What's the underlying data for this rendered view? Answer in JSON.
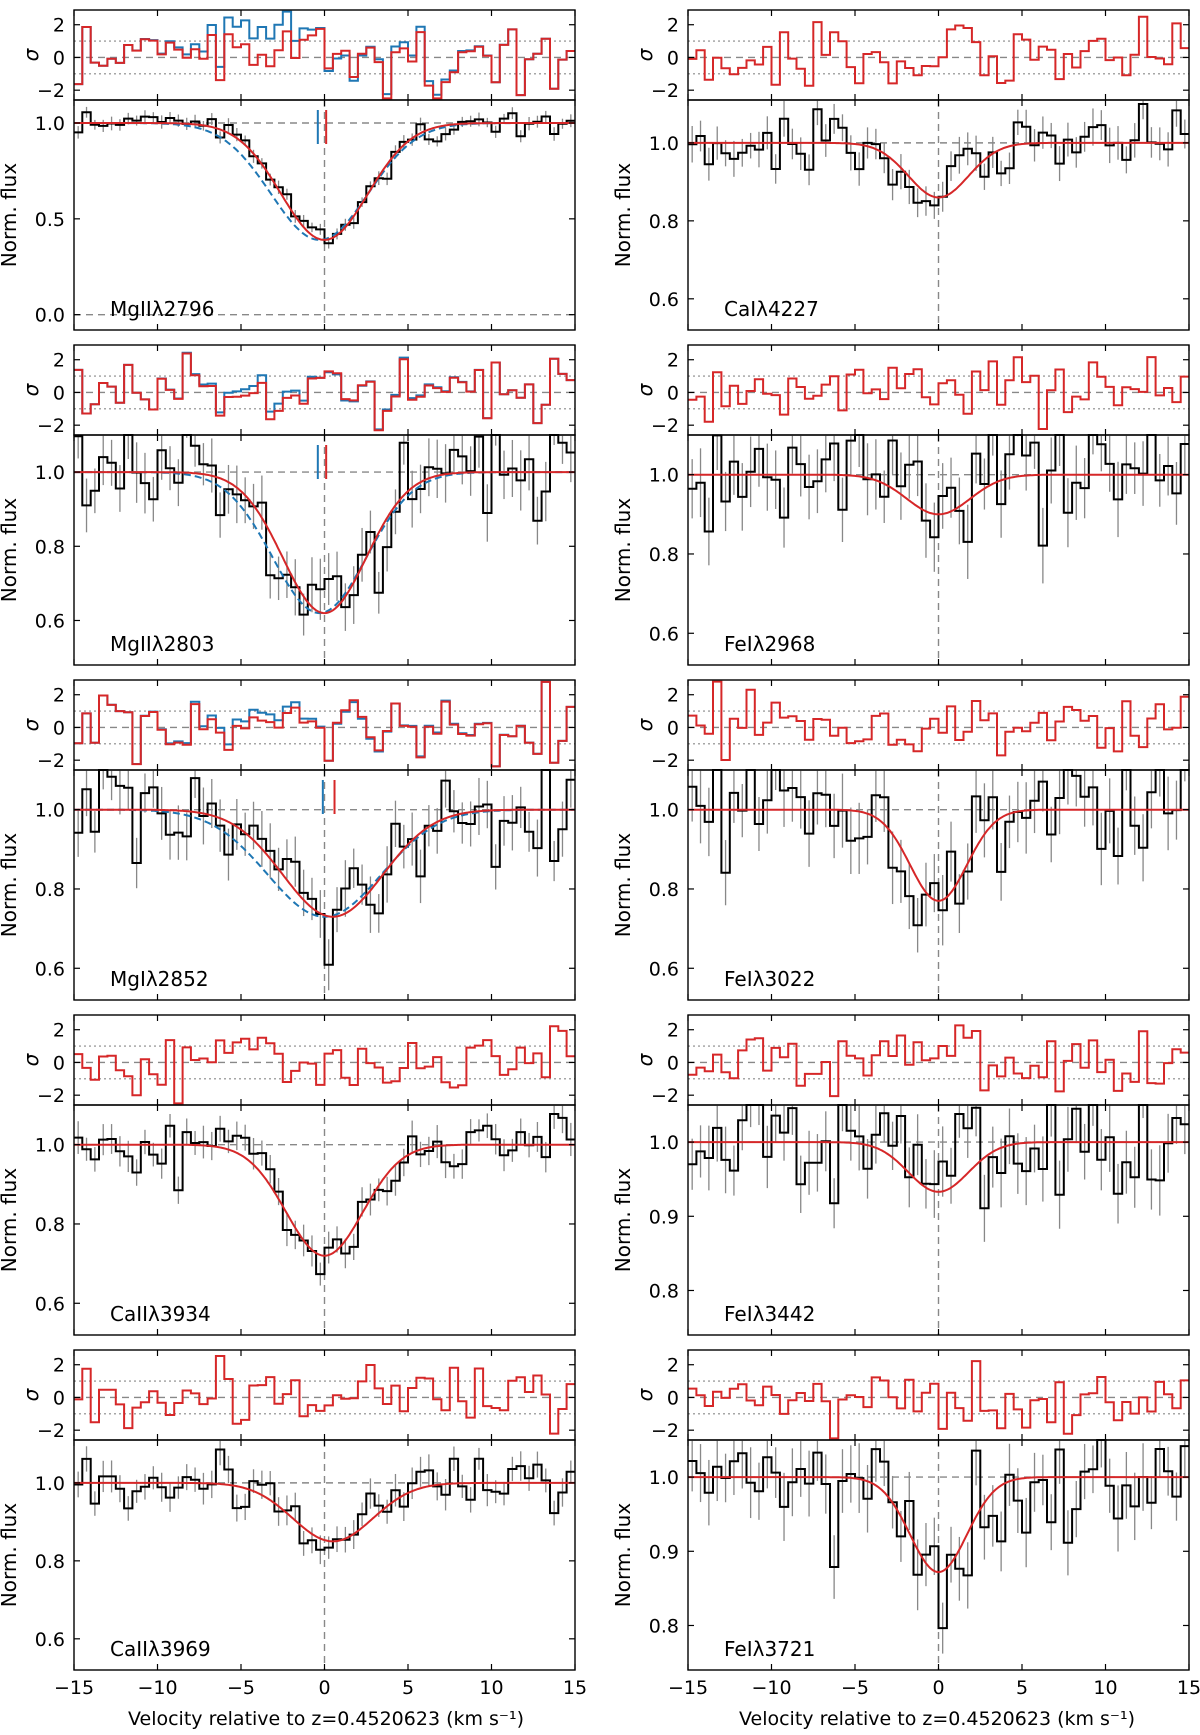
{
  "figure": {
    "xlabel": "Velocity relative to z=0.4520623 (km s⁻¹)",
    "resid_ylabel": "σ",
    "flux_ylabel": "Norm. flux",
    "xlim": [
      -15,
      15
    ],
    "xticks": [
      -15,
      -10,
      -5,
      0,
      5,
      10,
      15
    ],
    "xtick_labels": [
      "−15",
      "−10",
      "−5",
      "0",
      "5",
      "10",
      "15"
    ],
    "resid_ylim": [
      -2.6,
      2.9
    ],
    "resid_yticks": [
      -2,
      0,
      2
    ],
    "resid_ytick_labels": [
      "−2",
      "0",
      "2"
    ],
    "colors": {
      "data": "#000000",
      "error": "#888888",
      "model_red": "#d62728",
      "model_blue": "#1f77b4",
      "reference": "#888888"
    }
  },
  "chart_data": [
    {
      "type": "line",
      "label": "MgIIλ2796",
      "ylabel": "Norm. flux",
      "ylim": [
        -0.08,
        1.12
      ],
      "yticks": [
        0.0,
        0.5,
        1.0
      ],
      "ytick_labels": [
        "0.0",
        "0.5",
        "1.0"
      ],
      "show_zero_line": true,
      "model": {
        "center": 0.0,
        "sigma": 2.6,
        "depth": 0.61,
        "min_flux": 0.39
      },
      "blue_model": {
        "center": -0.3,
        "sigma": 2.9,
        "depth": 0.61
      },
      "component_ticks": [
        {
          "v": -0.4,
          "color": "blue"
        },
        {
          "v": 0.1,
          "color": "red"
        }
      ],
      "noise_level": 0.03,
      "resid_blue": true
    },
    {
      "type": "line",
      "label": "CaIλ4227",
      "ylabel": "Norm. flux",
      "ylim": [
        0.52,
        1.11
      ],
      "yticks": [
        0.6,
        0.8,
        1.0
      ],
      "ytick_labels": [
        "0.6",
        "0.8",
        "1.0"
      ],
      "model": {
        "center": 0.0,
        "sigma": 1.8,
        "depth": 0.14,
        "min_flux": 0.86
      },
      "noise_level": 0.04,
      "resid_blue": false
    },
    {
      "type": "line",
      "label": "MgIIλ2803",
      "ylabel": "Norm. flux",
      "ylim": [
        0.48,
        1.1
      ],
      "yticks": [
        0.6,
        0.8,
        1.0
      ],
      "ytick_labels": [
        "0.6",
        "0.8",
        "1.0"
      ],
      "model": {
        "center": 0.0,
        "sigma": 2.5,
        "depth": 0.38,
        "min_flux": 0.62
      },
      "blue_model": {
        "center": -0.3,
        "sigma": 2.8,
        "depth": 0.38
      },
      "component_ticks": [
        {
          "v": -0.4,
          "color": "blue"
        },
        {
          "v": 0.1,
          "color": "red"
        }
      ],
      "noise_level": 0.07,
      "resid_blue": true
    },
    {
      "type": "line",
      "label": "FeIλ2968",
      "ylabel": "Norm. flux",
      "ylim": [
        0.52,
        1.1
      ],
      "yticks": [
        0.6,
        0.8,
        1.0
      ],
      "ytick_labels": [
        "0.6",
        "0.8",
        "1.0"
      ],
      "model": {
        "center": 0.0,
        "sigma": 1.9,
        "depth": 0.1,
        "min_flux": 0.9
      },
      "noise_level": 0.08,
      "resid_blue": false
    },
    {
      "type": "line",
      "label": "MgIλ2852",
      "ylabel": "Norm. flux",
      "ylim": [
        0.52,
        1.1
      ],
      "yticks": [
        0.6,
        0.8,
        1.0
      ],
      "ytick_labels": [
        "0.6",
        "0.8",
        "1.0"
      ],
      "model": {
        "center": 0.5,
        "sigma": 3.0,
        "depth": 0.27,
        "min_flux": 0.73
      },
      "blue_model": {
        "center": 0.0,
        "sigma": 3.4,
        "depth": 0.27
      },
      "component_ticks": [
        {
          "v": -0.1,
          "color": "blue"
        },
        {
          "v": 0.6,
          "color": "red"
        }
      ],
      "noise_level": 0.06,
      "resid_blue": true
    },
    {
      "type": "line",
      "label": "FeIλ3022",
      "ylabel": "Norm. flux",
      "ylim": [
        0.52,
        1.1
      ],
      "yticks": [
        0.6,
        0.8,
        1.0
      ],
      "ytick_labels": [
        "0.6",
        "0.8",
        "1.0"
      ],
      "model": {
        "center": 0.0,
        "sigma": 1.7,
        "depth": 0.23,
        "min_flux": 0.77
      },
      "noise_level": 0.08,
      "resid_blue": false
    },
    {
      "type": "line",
      "label": "CaIIλ3934",
      "ylabel": "Norm. flux",
      "ylim": [
        0.52,
        1.1
      ],
      "yticks": [
        0.6,
        0.8,
        1.0
      ],
      "ytick_labels": [
        "0.6",
        "0.8",
        "1.0"
      ],
      "model": {
        "center": 0.0,
        "sigma": 2.3,
        "depth": 0.28,
        "min_flux": 0.72
      },
      "noise_level": 0.035,
      "resid_blue": false
    },
    {
      "type": "line",
      "label": "FeIλ3442",
      "ylabel": "Norm. flux",
      "ylim": [
        0.74,
        1.05
      ],
      "yticks": [
        0.8,
        0.9,
        1.0
      ],
      "ytick_labels": [
        "0.8",
        "0.9",
        "1.0"
      ],
      "model": {
        "center": 0.0,
        "sigma": 1.8,
        "depth": 0.067,
        "min_flux": 0.933
      },
      "noise_level": 0.04,
      "resid_blue": false
    },
    {
      "type": "line",
      "label": "CaIIλ3969",
      "ylabel": "Norm. flux",
      "ylim": [
        0.52,
        1.11
      ],
      "yticks": [
        0.6,
        0.8,
        1.0
      ],
      "ytick_labels": [
        "0.6",
        "0.8",
        "1.0"
      ],
      "model": {
        "center": 0.5,
        "sigma": 2.4,
        "depth": 0.15,
        "min_flux": 0.85
      },
      "noise_level": 0.035,
      "resid_blue": false
    },
    {
      "type": "line",
      "label": "FeIλ3721",
      "ylabel": "Norm. flux",
      "ylim": [
        0.74,
        1.05
      ],
      "yticks": [
        0.8,
        0.9,
        1.0
      ],
      "ytick_labels": [
        "0.8",
        "0.9",
        "1.0"
      ],
      "model": {
        "center": 0.0,
        "sigma": 1.7,
        "depth": 0.128,
        "min_flux": 0.872
      },
      "noise_level": 0.04,
      "resid_blue": false
    }
  ]
}
